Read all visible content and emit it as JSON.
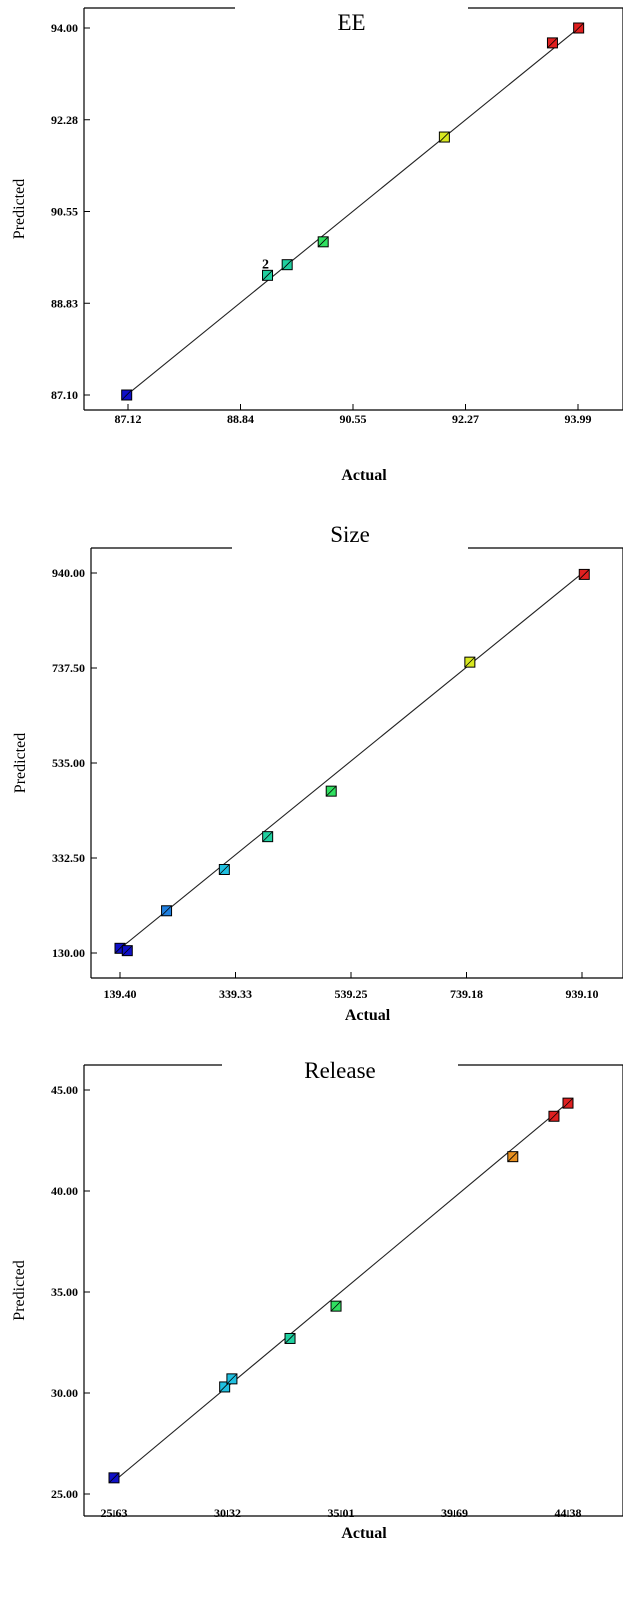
{
  "chart_data": [
    {
      "type": "scatter",
      "title": "EE",
      "xlabel": "Actual",
      "ylabel": "Predicted",
      "xlim": [
        87.12,
        93.99
      ],
      "ylim": [
        87.1,
        94.0
      ],
      "xticks": [
        "87.12",
        "88.84",
        "90.55",
        "92.27",
        "93.99"
      ],
      "yticks": [
        "87.10",
        "88.83",
        "90.55",
        "92.28",
        "94.00"
      ],
      "grid": false,
      "diagonal_line": true,
      "points": [
        {
          "x": 87.1,
          "y": 87.1,
          "color": "#1010c8"
        },
        {
          "x": 89.25,
          "y": 89.35,
          "color": "#20d0a0",
          "label": "2"
        },
        {
          "x": 89.55,
          "y": 89.55,
          "color": "#20d0a0"
        },
        {
          "x": 90.1,
          "y": 89.98,
          "color": "#30e060"
        },
        {
          "x": 91.95,
          "y": 91.95,
          "color": "#d8e820"
        },
        {
          "x": 93.6,
          "y": 93.72,
          "color": "#e02020"
        },
        {
          "x": 94.0,
          "y": 94.0,
          "color": "#e02020"
        }
      ]
    },
    {
      "type": "scatter",
      "title": "Size",
      "xlabel": "Actual",
      "ylabel": "Predicted",
      "xlim": [
        139.4,
        939.1
      ],
      "ylim": [
        130.0,
        940.0
      ],
      "xticks": [
        "139.40",
        "339.33",
        "539.25",
        "739.18",
        "939.10"
      ],
      "yticks": [
        "130.00",
        "332.50",
        "535.00",
        "737.50",
        "940.00"
      ],
      "grid": false,
      "diagonal_line": true,
      "points": [
        {
          "x": 139.4,
          "y": 140.0,
          "color": "#1010c8"
        },
        {
          "x": 152.0,
          "y": 135.0,
          "color": "#1010c8"
        },
        {
          "x": 220.0,
          "y": 220.0,
          "color": "#2080e0"
        },
        {
          "x": 320.0,
          "y": 308.0,
          "color": "#20c0e0"
        },
        {
          "x": 395.0,
          "y": 378.0,
          "color": "#20d0a0"
        },
        {
          "x": 505.0,
          "y": 475.0,
          "color": "#30e060"
        },
        {
          "x": 745.0,
          "y": 750.0,
          "color": "#d8e820"
        },
        {
          "x": 943.0,
          "y": 937.0,
          "color": "#e02020"
        }
      ]
    },
    {
      "type": "scatter",
      "title": "Release",
      "xlabel": "Actual",
      "ylabel": "Predicted",
      "xlim": [
        25.63,
        44.38
      ],
      "ylim": [
        25.0,
        45.0
      ],
      "xticks": [
        "25.63",
        "30.32",
        "35.01",
        "39.69",
        "44.38"
      ],
      "yticks": [
        "25.00",
        "30.00",
        "35.00",
        "40.00",
        "45.00"
      ],
      "grid": false,
      "diagonal_line": true,
      "points": [
        {
          "x": 25.63,
          "y": 25.8,
          "color": "#1010c8"
        },
        {
          "x": 30.2,
          "y": 30.3,
          "color": "#20c0e0"
        },
        {
          "x": 30.5,
          "y": 30.7,
          "color": "#20c0e0"
        },
        {
          "x": 32.9,
          "y": 32.7,
          "color": "#20d0a0"
        },
        {
          "x": 34.8,
          "y": 34.3,
          "color": "#30e060"
        },
        {
          "x": 42.1,
          "y": 41.7,
          "color": "#e89020"
        },
        {
          "x": 43.8,
          "y": 43.7,
          "color": "#e02020"
        },
        {
          "x": 44.38,
          "y": 44.35,
          "color": "#e02020"
        }
      ]
    }
  ]
}
